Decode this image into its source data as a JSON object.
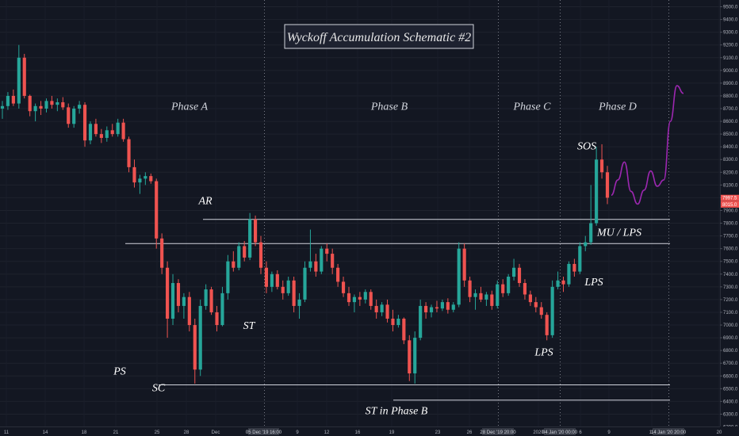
{
  "chart_data": {
    "type": "candlestick",
    "title": "Wyckoff Accumulation Schematic #2",
    "ylim": [
      6200,
      9550
    ],
    "y_ticks": [
      6200,
      6300,
      6400,
      6500,
      6600,
      6700,
      6800,
      6900,
      7000,
      7100,
      7200,
      7300,
      7400,
      7500,
      7600,
      7700,
      7800,
      7900,
      8000,
      8100,
      8200,
      8300,
      8400,
      8500,
      8600,
      8700,
      8800,
      8900,
      9000,
      9100,
      9200,
      9300,
      9400,
      9500
    ],
    "y_tick_labels": [
      "6200.0",
      "6300.0",
      "6400.0",
      "6500.0",
      "6600.0",
      "6700.0",
      "6800.0",
      "6900.0",
      "7000.0",
      "7100.0",
      "7200.0",
      "7300.0",
      "7400.0",
      "7500.0",
      "7600.0",
      "7700.0",
      "7800.0",
      "7900.0",
      "8000.0",
      "8100.0",
      "8200.0",
      "8300.0",
      "8400.0",
      "8500.0",
      "8600.0",
      "8700.0",
      "8800.0",
      "8900.0",
      "9000.0",
      "9100.0",
      "9200.0",
      "9300.0",
      "9400.0",
      "9500.0"
    ],
    "x_ticks": [
      "11",
      "14",
      "18",
      "21",
      "25",
      "28",
      "Dec",
      "9",
      "12",
      "16",
      "19",
      "23",
      "26",
      "2020",
      "6",
      "9",
      "13",
      "20"
    ],
    "x_badges": [
      "05 Dec '19   16:00",
      "28 Dec '19   20:00",
      "04 Jan '20   00:00",
      "14 Jan '20   20:00"
    ],
    "price_badges": [
      {
        "label": "7997.5",
        "value": 7998,
        "color": "#ef5350"
      },
      {
        "label": "8015.0",
        "value": 7947,
        "color": "#ef5350"
      }
    ],
    "phases": [
      {
        "label": "Phase A",
        "value": 8690
      },
      {
        "label": "Phase B",
        "value": 8690
      },
      {
        "label": "Phase C",
        "value": 8690
      },
      {
        "label": "Phase D",
        "value": 8690
      }
    ],
    "annotations": [
      {
        "label": "PS",
        "value": 6610
      },
      {
        "label": "SC",
        "value": 6480
      },
      {
        "label": "AR",
        "value": 7950
      },
      {
        "label": "ST",
        "value": 6970
      },
      {
        "label": "ST in Phase B",
        "value": 6300
      },
      {
        "label": "LPS",
        "value": 6760
      },
      {
        "label": "LPS",
        "value": 7310
      },
      {
        "label": "MU / LPS",
        "value": 7700
      },
      {
        "label": "SOS",
        "value": 8380
      }
    ],
    "levels": [
      7830,
      7640,
      6530,
      6410
    ],
    "projection": [
      8020,
      8140,
      8280,
      8050,
      7950,
      8060,
      8210,
      8090,
      8140,
      8600,
      8880,
      8820
    ],
    "ohlc": [
      [
        8700,
        8760,
        8620,
        8720
      ],
      [
        8720,
        8830,
        8690,
        8800
      ],
      [
        8800,
        8850,
        8720,
        8740
      ],
      [
        8740,
        9200,
        8700,
        9100
      ],
      [
        9100,
        9130,
        8780,
        8800
      ],
      [
        8800,
        8810,
        8640,
        8680
      ],
      [
        8680,
        8740,
        8600,
        8720
      ],
      [
        8720,
        8760,
        8650,
        8700
      ],
      [
        8700,
        8780,
        8670,
        8760
      ],
      [
        8760,
        8800,
        8700,
        8730
      ],
      [
        8730,
        8780,
        8680,
        8750
      ],
      [
        8750,
        8790,
        8690,
        8710
      ],
      [
        8710,
        8740,
        8550,
        8580
      ],
      [
        8580,
        8720,
        8550,
        8700
      ],
      [
        8700,
        8760,
        8660,
        8730
      ],
      [
        8730,
        8750,
        8400,
        8450
      ],
      [
        8450,
        8600,
        8420,
        8580
      ],
      [
        8580,
        8620,
        8480,
        8500
      ],
      [
        8500,
        8540,
        8430,
        8470
      ],
      [
        8470,
        8560,
        8440,
        8530
      ],
      [
        8530,
        8580,
        8480,
        8500
      ],
      [
        8500,
        8620,
        8480,
        8590
      ],
      [
        8590,
        8620,
        8440,
        8460
      ],
      [
        8460,
        8480,
        8200,
        8240
      ],
      [
        8240,
        8300,
        8080,
        8120
      ],
      [
        8120,
        8180,
        8030,
        8150
      ],
      [
        8150,
        8200,
        8100,
        8170
      ],
      [
        8170,
        8190,
        8110,
        8130
      ],
      [
        8130,
        8150,
        7600,
        7680
      ],
      [
        7680,
        7720,
        7400,
        7450
      ],
      [
        7450,
        7500,
        6900,
        7050
      ],
      [
        7050,
        7400,
        7000,
        7330
      ],
      [
        7330,
        7360,
        7100,
        7150
      ],
      [
        7150,
        7250,
        7050,
        7220
      ],
      [
        7220,
        7260,
        6950,
        7000
      ],
      [
        7000,
        7050,
        6540,
        6650
      ],
      [
        6650,
        7200,
        6600,
        7150
      ],
      [
        7150,
        7320,
        7120,
        7280
      ],
      [
        7280,
        7300,
        7080,
        7100
      ],
      [
        7100,
        7150,
        6950,
        7000
      ],
      [
        7000,
        7300,
        6990,
        7250
      ],
      [
        7250,
        7550,
        7200,
        7500
      ],
      [
        7500,
        7580,
        7420,
        7450
      ],
      [
        7450,
        7650,
        7430,
        7620
      ],
      [
        7620,
        7660,
        7500,
        7530
      ],
      [
        7530,
        7880,
        7510,
        7830
      ],
      [
        7830,
        7860,
        7620,
        7650
      ],
      [
        7650,
        7700,
        7400,
        7450
      ],
      [
        7450,
        7500,
        7250,
        7300
      ],
      [
        7300,
        7420,
        7260,
        7400
      ],
      [
        7400,
        7430,
        7280,
        7300
      ],
      [
        7300,
        7350,
        7200,
        7250
      ],
      [
        7250,
        7380,
        7230,
        7350
      ],
      [
        7350,
        7380,
        7100,
        7150
      ],
      [
        7150,
        7250,
        7050,
        7200
      ],
      [
        7200,
        7500,
        7180,
        7450
      ],
      [
        7450,
        7750,
        7420,
        7500
      ],
      [
        7500,
        7560,
        7380,
        7420
      ],
      [
        7420,
        7620,
        7400,
        7600
      ],
      [
        7600,
        7640,
        7500,
        7560
      ],
      [
        7560,
        7600,
        7400,
        7450
      ],
      [
        7450,
        7480,
        7300,
        7340
      ],
      [
        7340,
        7380,
        7220,
        7250
      ],
      [
        7250,
        7300,
        7150,
        7180
      ],
      [
        7180,
        7240,
        7100,
        7220
      ],
      [
        7220,
        7260,
        7150,
        7200
      ],
      [
        7200,
        7280,
        7170,
        7260
      ],
      [
        7260,
        7280,
        7120,
        7150
      ],
      [
        7150,
        7200,
        7050,
        7100
      ],
      [
        7100,
        7180,
        7070,
        7160
      ],
      [
        7160,
        7200,
        7020,
        7050
      ],
      [
        7050,
        7120,
        6950,
        7000
      ],
      [
        7000,
        7080,
        6980,
        7050
      ],
      [
        7050,
        7060,
        6850,
        6880
      ],
      [
        6880,
        6920,
        6560,
        6620
      ],
      [
        6620,
        6950,
        6540,
        6900
      ],
      [
        6900,
        7200,
        6880,
        7150
      ],
      [
        7150,
        7180,
        7050,
        7100
      ],
      [
        7100,
        7160,
        7060,
        7140
      ],
      [
        7140,
        7190,
        7100,
        7130
      ],
      [
        7130,
        7200,
        7110,
        7180
      ],
      [
        7180,
        7210,
        7090,
        7120
      ],
      [
        7120,
        7180,
        7100,
        7160
      ],
      [
        7160,
        7650,
        7140,
        7600
      ],
      [
        7600,
        7640,
        7300,
        7350
      ],
      [
        7350,
        7380,
        7180,
        7220
      ],
      [
        7220,
        7280,
        7120,
        7250
      ],
      [
        7250,
        7300,
        7180,
        7200
      ],
      [
        7200,
        7260,
        7150,
        7240
      ],
      [
        7240,
        7270,
        7120,
        7150
      ],
      [
        7150,
        7350,
        7130,
        7320
      ],
      [
        7320,
        7360,
        7220,
        7250
      ],
      [
        7250,
        7400,
        7230,
        7380
      ],
      [
        7380,
        7520,
        7350,
        7450
      ],
      [
        7450,
        7480,
        7300,
        7330
      ],
      [
        7330,
        7360,
        7200,
        7240
      ],
      [
        7240,
        7270,
        7150,
        7180
      ],
      [
        7180,
        7220,
        7100,
        7140
      ],
      [
        7140,
        7180,
        7050,
        7080
      ],
      [
        7080,
        7100,
        6880,
        6920
      ],
      [
        6920,
        7350,
        6900,
        7300
      ],
      [
        7300,
        7420,
        7280,
        7350
      ],
      [
        7350,
        7380,
        7260,
        7320
      ],
      [
        7320,
        7500,
        7300,
        7480
      ],
      [
        7480,
        7520,
        7380,
        7420
      ],
      [
        7420,
        7650,
        7400,
        7620
      ],
      [
        7620,
        7700,
        7580,
        7650
      ],
      [
        7650,
        8100,
        7630,
        7800
      ],
      [
        7800,
        8400,
        7780,
        8300
      ],
      [
        8300,
        8420,
        8150,
        8200
      ],
      [
        8200,
        8250,
        7950,
        8000
      ]
    ]
  }
}
